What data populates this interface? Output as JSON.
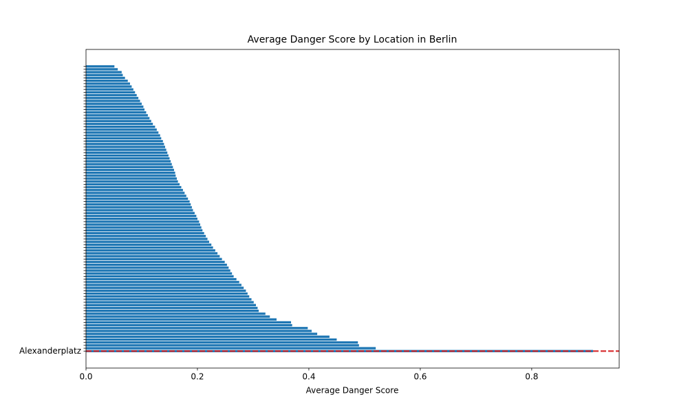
{
  "chart_data": {
    "type": "barh",
    "title": "Average Danger Score by Location in Berlin",
    "xlabel": "Average Danger Score",
    "categories": [
      "Alexanderplatz",
      null,
      null,
      null,
      null,
      null,
      null,
      null,
      null,
      null,
      null,
      null,
      null,
      null,
      null,
      null,
      null,
      null,
      null,
      null,
      null,
      null,
      null,
      null,
      null,
      null,
      null,
      null,
      null,
      null,
      null,
      null,
      null,
      null,
      null,
      null,
      null,
      null,
      null,
      null,
      null,
      null,
      null,
      null,
      null,
      null,
      null,
      null,
      null,
      null,
      null,
      null,
      null,
      null,
      null,
      null,
      null,
      null,
      null,
      null,
      null,
      null,
      null,
      null,
      null,
      null,
      null,
      null,
      null,
      null,
      null,
      null,
      null,
      null,
      null,
      null,
      null,
      null,
      null,
      null,
      null,
      null,
      null,
      null,
      null,
      null,
      null,
      null,
      null,
      null,
      null,
      null,
      null,
      null,
      null,
      null,
      null,
      null,
      null,
      null
    ],
    "values": [
      0.91,
      0.52,
      0.49,
      0.488,
      0.45,
      0.437,
      0.415,
      0.405,
      0.398,
      0.37,
      0.368,
      0.342,
      0.33,
      0.322,
      0.31,
      0.308,
      0.305,
      0.301,
      0.297,
      0.293,
      0.29,
      0.287,
      0.283,
      0.279,
      0.275,
      0.27,
      0.265,
      0.262,
      0.259,
      0.256,
      0.253,
      0.249,
      0.244,
      0.24,
      0.236,
      0.232,
      0.228,
      0.225,
      0.221,
      0.218,
      0.215,
      0.212,
      0.209,
      0.207,
      0.205,
      0.203,
      0.2,
      0.198,
      0.195,
      0.192,
      0.19,
      0.188,
      0.186,
      0.183,
      0.18,
      0.177,
      0.174,
      0.171,
      0.168,
      0.165,
      0.163,
      0.161,
      0.16,
      0.158,
      0.156,
      0.154,
      0.152,
      0.15,
      0.148,
      0.146,
      0.144,
      0.142,
      0.14,
      0.138,
      0.135,
      0.133,
      0.13,
      0.127,
      0.124,
      0.12,
      0.117,
      0.114,
      0.111,
      0.108,
      0.105,
      0.103,
      0.1,
      0.097,
      0.094,
      0.091,
      0.088,
      0.085,
      0.082,
      0.079,
      0.075,
      0.07,
      0.066,
      0.064,
      0.057,
      0.051
    ],
    "color": "#1f77b4",
    "xlim": [
      0,
      0.957
    ],
    "xticks": [
      {
        "value": 0,
        "label": "0.0"
      },
      0.2,
      0.4,
      0.6,
      0.8
    ],
    "hline": {
      "value": 0,
      "color": "#d62728"
    }
  }
}
